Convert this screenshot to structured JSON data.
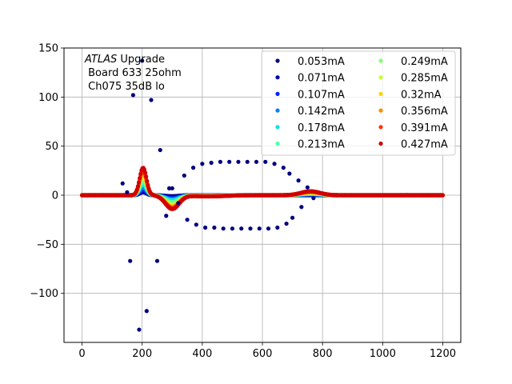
{
  "chart_data": {
    "type": "scatter",
    "title": "",
    "xlabel": "",
    "ylabel": "",
    "xlim": [
      -60,
      1260
    ],
    "ylim": [
      -150,
      150
    ],
    "x_ticks": [
      0,
      200,
      400,
      600,
      800,
      1000,
      1200
    ],
    "y_ticks": [
      -100,
      -50,
      0,
      50,
      100,
      150
    ],
    "x_tick_labels": [
      "0",
      "200",
      "400",
      "600",
      "800",
      "1000",
      "1200"
    ],
    "y_tick_labels": [
      "−100",
      "−50",
      "0",
      "50",
      "100",
      "150"
    ],
    "grid": true,
    "legend_position": "top-right",
    "legend_columns": 2,
    "annotation": {
      "italic": "ATLAS",
      "line1_rest": " Upgrade",
      "line2": " Board 633 25ohm",
      "line3": " Ch075 35dB lo"
    },
    "series": [
      {
        "name": "0.053mA",
        "color": "#00007f"
      },
      {
        "name": "0.071mA",
        "color": "#0000a8"
      },
      {
        "name": "0.107mA",
        "color": "#0022ff"
      },
      {
        "name": "0.142mA",
        "color": "#0080ff"
      },
      {
        "name": "0.178mA",
        "color": "#15e0e4"
      },
      {
        "name": "0.213mA",
        "color": "#4cffac"
      },
      {
        "name": "0.249mA",
        "color": "#86ff70"
      },
      {
        "name": "0.285mA",
        "color": "#c4ff33"
      },
      {
        "name": "0.32mA",
        "color": "#ffd400"
      },
      {
        "name": "0.356mA",
        "color": "#ff8c00"
      },
      {
        "name": "0.391mA",
        "color": "#ff3300"
      },
      {
        "name": "0.427mA",
        "color": "#d10000"
      }
    ],
    "outlier_points_series0": [
      [
        135,
        12
      ],
      [
        150,
        3
      ],
      [
        160,
        -67
      ],
      [
        170,
        102
      ],
      [
        190,
        -137
      ],
      [
        200,
        137
      ],
      [
        215,
        -118
      ],
      [
        230,
        97
      ],
      [
        250,
        -67
      ],
      [
        260,
        46
      ],
      [
        280,
        -21
      ],
      [
        290,
        7
      ],
      [
        300,
        7
      ],
      [
        320,
        -8
      ],
      [
        340,
        20
      ],
      [
        350,
        -25
      ],
      [
        370,
        28
      ],
      [
        380,
        -30
      ],
      [
        400,
        32
      ],
      [
        410,
        -33
      ],
      [
        430,
        33
      ],
      [
        440,
        -33
      ],
      [
        460,
        34
      ],
      [
        470,
        -34
      ],
      [
        490,
        34
      ],
      [
        500,
        -34
      ],
      [
        520,
        34
      ],
      [
        530,
        -34
      ],
      [
        550,
        34
      ],
      [
        560,
        -34
      ],
      [
        580,
        34
      ],
      [
        590,
        -34
      ],
      [
        610,
        34
      ],
      [
        620,
        -34
      ],
      [
        640,
        32
      ],
      [
        650,
        -33
      ],
      [
        670,
        28
      ],
      [
        680,
        -29
      ],
      [
        690,
        22
      ],
      [
        700,
        -23
      ],
      [
        720,
        15
      ],
      [
        730,
        -12
      ],
      [
        750,
        8
      ],
      [
        770,
        -3
      ]
    ],
    "waveform_shape": {
      "x_start": 0,
      "x_end": 1200,
      "x_step": 3,
      "main_pulse_center": 203,
      "main_pulse_peak_by_series": [
        3,
        4,
        6,
        8,
        11,
        14,
        17,
        20,
        22,
        24,
        26,
        28
      ],
      "undershoot_center": 300,
      "undershoot_by_series": [
        -1,
        -2,
        -3,
        -4,
        -5,
        -7,
        -8,
        -10,
        -11,
        -12,
        -13,
        -14
      ],
      "bump_center": 760,
      "bump_height": 4
    }
  }
}
